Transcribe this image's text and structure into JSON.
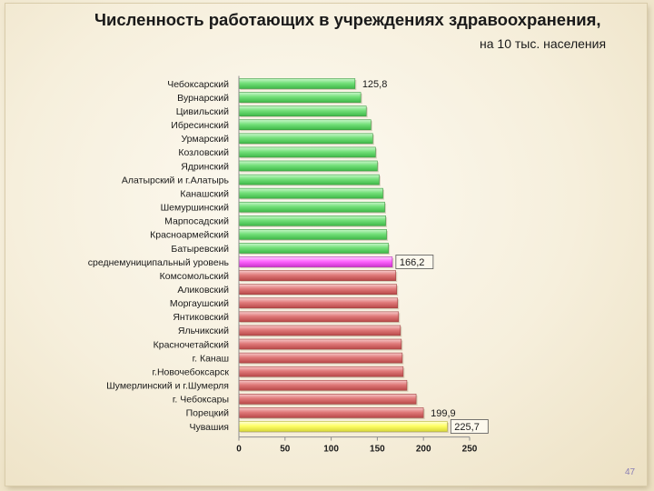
{
  "slide": {
    "title": "Численность работающих в учреждениях здравоохранения,",
    "subtitle": "на 10 тыс. населения",
    "page_number": "47"
  },
  "colors": {
    "green": "#74e07a",
    "pink": "#ff66ff",
    "red": "#e07a7a",
    "yellow": "#ffff66"
  },
  "chart_data": {
    "type": "bar",
    "orientation": "horizontal",
    "title": "Численность работающих в учреждениях здравоохранения,",
    "subtitle": "на 10 тыс. населения",
    "categories": [
      "Чебоксарский",
      "Вурнарский",
      "Цивильский",
      "Ибресинский",
      "Урмарский",
      "Козловский",
      "Ядринский",
      "Алатырский и г.Алатырь",
      "Канашский",
      "Шемуршинский",
      "Марпосадский",
      "Красноармейский",
      "Батыревский",
      "среднемуниципальный уровень",
      "Комсомольский",
      "Аликовский",
      "Моргаушский",
      "Янтиковский",
      "Яльчикский",
      "Красночетайский",
      "г. Канаш",
      "г.Новочебоксарск",
      "Шумерлинский и г.Шумерля",
      "г. Чебоксары",
      "Порецкий",
      "Чувашия"
    ],
    "values": [
      125.8,
      132,
      138,
      143,
      145,
      148,
      150,
      152,
      156,
      158,
      159,
      160,
      162,
      166.2,
      170,
      171,
      172,
      173,
      175,
      176,
      177,
      178,
      182,
      192,
      199.9,
      225.7
    ],
    "bar_colors": [
      "green",
      "green",
      "green",
      "green",
      "green",
      "green",
      "green",
      "green",
      "green",
      "green",
      "green",
      "green",
      "green",
      "pink",
      "red",
      "red",
      "red",
      "red",
      "red",
      "red",
      "red",
      "red",
      "red",
      "red",
      "red",
      "yellow"
    ],
    "data_labels": [
      {
        "index": 0,
        "text": "125,8"
      },
      {
        "index": 13,
        "text": "166,2",
        "boxed": true
      },
      {
        "index": 24,
        "text": "199,9"
      },
      {
        "index": 25,
        "text": "225,7",
        "boxed": true
      }
    ],
    "xticks": [
      "0",
      "50",
      "100",
      "150",
      "200",
      "250"
    ],
    "xlim": [
      0,
      250
    ],
    "grid": false,
    "legend": "none"
  }
}
